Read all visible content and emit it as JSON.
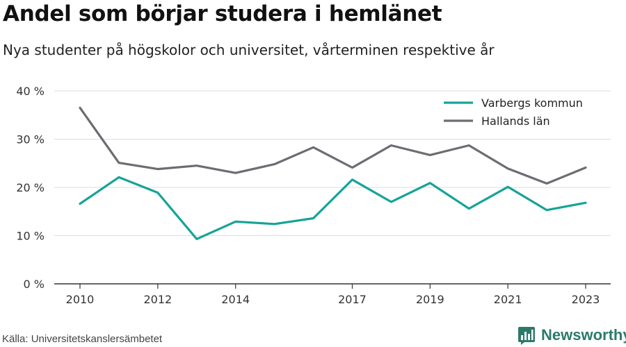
{
  "header": {
    "title": "Andel som börjar studera i hemlänet",
    "subtitle": "Nya studenter på högskolor och universitet, vårterminen respektive år"
  },
  "footer": {
    "source": "Källa: Universitetskanslersämbetet",
    "brand": "Newsworthy",
    "brand_icon": "bar-chart-logo-icon"
  },
  "colors": {
    "varberg": "#16a397",
    "halland": "#6c6c72",
    "grid": "#dddddd",
    "axis": "#333333",
    "brand": "#2d7a6b"
  },
  "chart_data": {
    "type": "line",
    "x": [
      2010,
      2011,
      2012,
      2013,
      2014,
      2015,
      2016,
      2017,
      2018,
      2019,
      2020,
      2021,
      2022,
      2023
    ],
    "series": [
      {
        "name": "Varbergs kommun",
        "color": "#16a397",
        "values": [
          16.6,
          22.1,
          18.9,
          9.3,
          12.9,
          12.4,
          13.6,
          21.6,
          17.0,
          20.9,
          15.6,
          20.1,
          15.3,
          16.8
        ]
      },
      {
        "name": "Hallands län",
        "color": "#6c6c72",
        "values": [
          36.5,
          25.1,
          23.8,
          24.5,
          23.0,
          24.8,
          28.3,
          24.1,
          28.7,
          26.7,
          28.7,
          23.9,
          20.8,
          24.1
        ]
      }
    ],
    "x_ticks": [
      2010,
      2012,
      2014,
      2017,
      2019,
      2021,
      2023
    ],
    "y_ticks": [
      0,
      10,
      20,
      30,
      40
    ],
    "y_tick_labels": [
      "0 %",
      "10 %",
      "20 %",
      "30 %",
      "40 %"
    ],
    "ylim": [
      0,
      40
    ],
    "xlim": [
      2010,
      2023
    ],
    "grid": "horizontal",
    "legend_position": "top-right"
  }
}
